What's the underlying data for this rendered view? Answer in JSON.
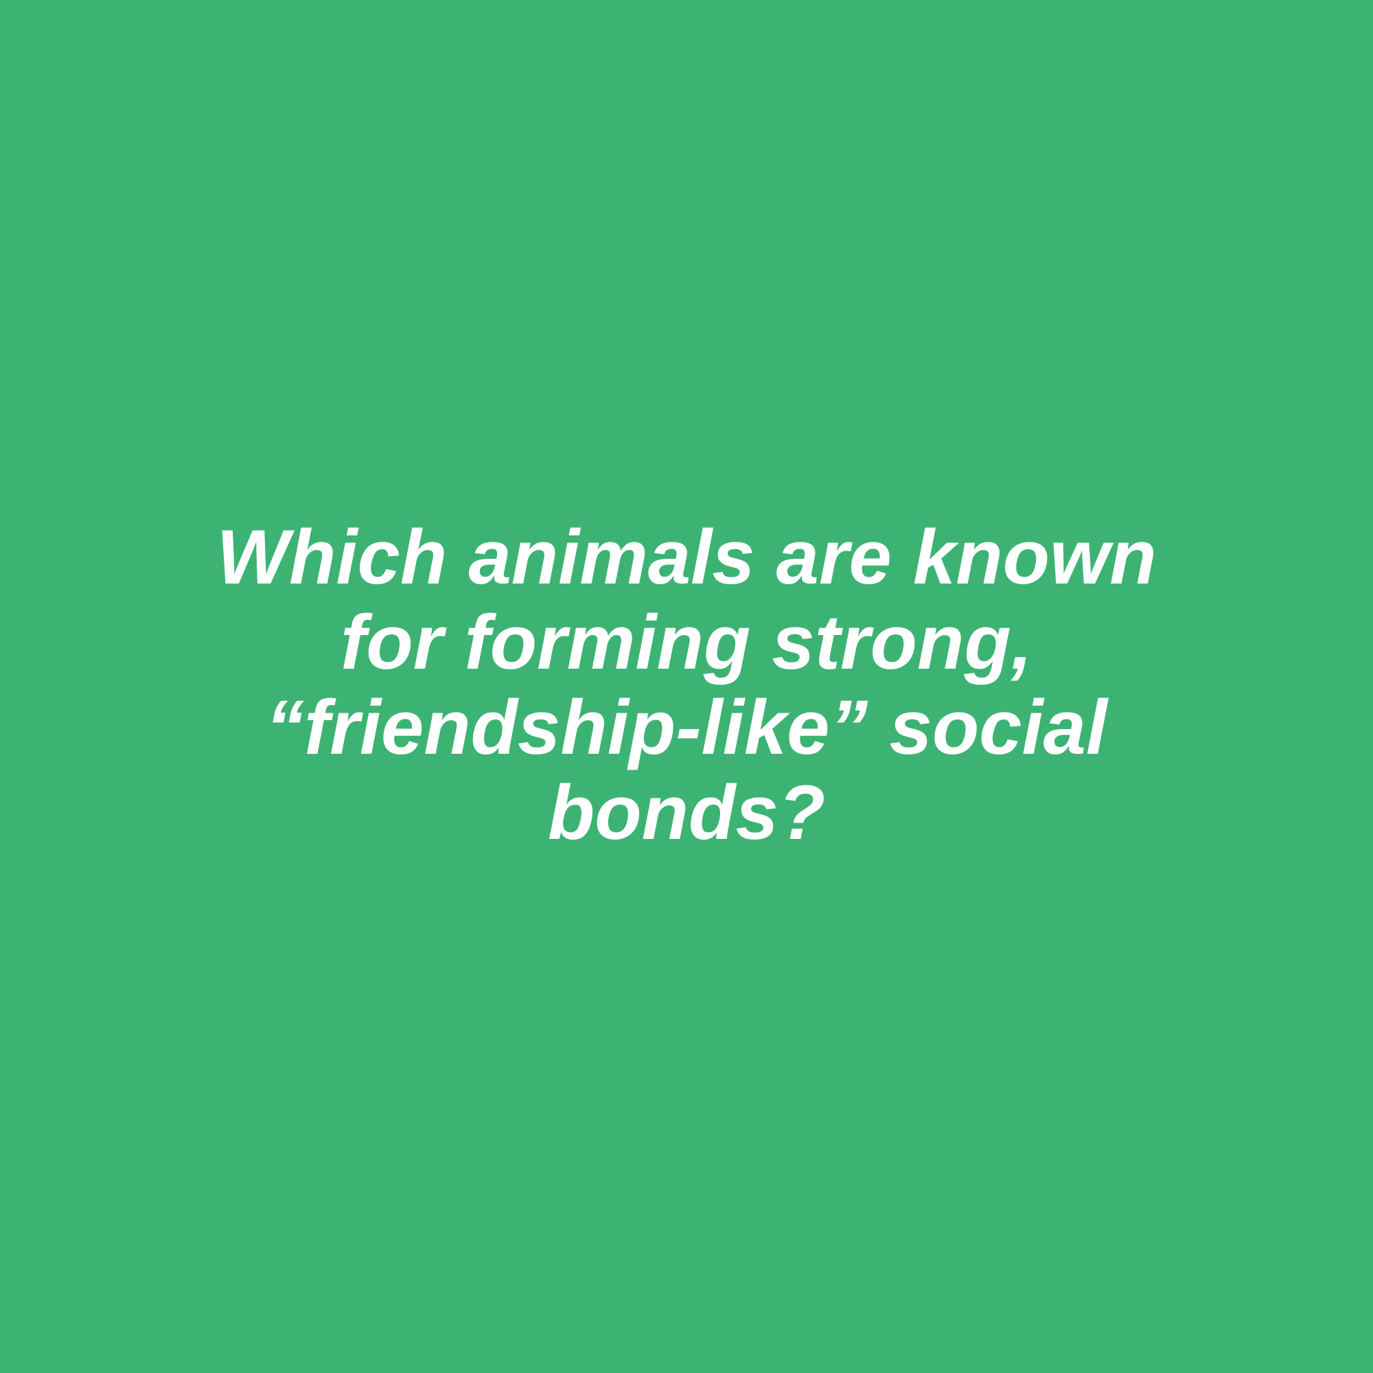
{
  "card": {
    "background_color": "#3db373",
    "text_color": "#ffffff",
    "question_lines": [
      "Which animals are known",
      "for forming strong,",
      "“friendship-like” social",
      "bonds?"
    ]
  }
}
